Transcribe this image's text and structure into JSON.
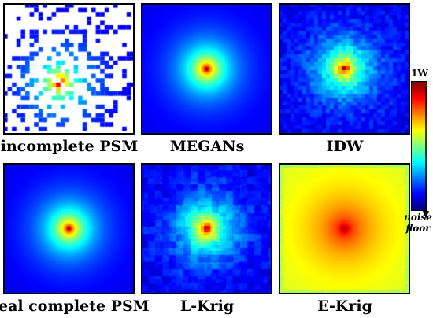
{
  "panels": [
    {
      "id": "incomplete",
      "caption": "incomplete PSM",
      "kind": "sparse"
    },
    {
      "id": "megans",
      "caption": "MEGANs",
      "kind": "smooth"
    },
    {
      "id": "idw",
      "caption": "IDW",
      "kind": "blocky"
    },
    {
      "id": "real",
      "caption": "real complete PSM",
      "kind": "smooth"
    },
    {
      "id": "lkrig",
      "caption": "L-Krig",
      "kind": "blobby"
    },
    {
      "id": "ekrig",
      "caption": "E-Krig",
      "kind": "high"
    }
  ],
  "colorbar": {
    "top_label": "1W",
    "bottom_label_line1": "noise",
    "bottom_label_line2": "floor",
    "colormap": "jet"
  }
}
